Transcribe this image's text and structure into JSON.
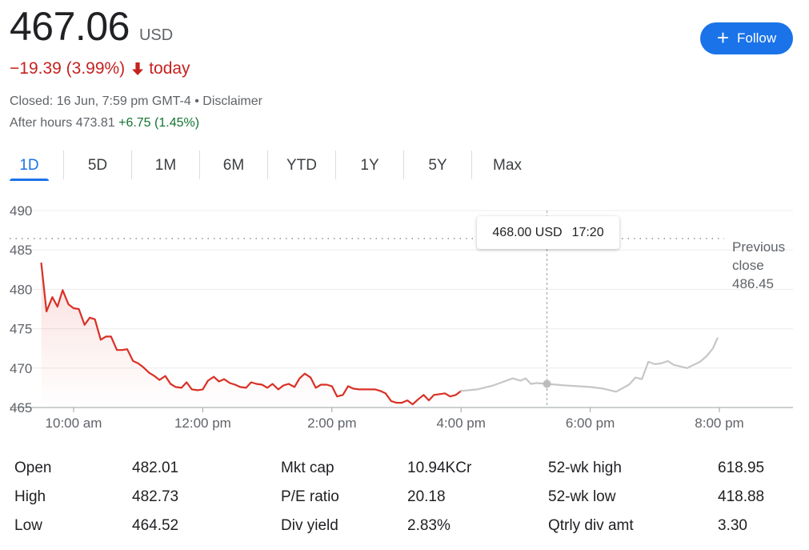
{
  "quote": {
    "price": "467.06",
    "currency": "USD",
    "change": "−19.39 (3.99%)",
    "change_suffix": "today",
    "closed_text": "Closed: 16 Jun, 7:59 pm GMT-4 • Disclaimer",
    "after_hours_label": "After hours 473.81",
    "after_hours_change": "+6.75 (1.45%)",
    "down_color": "#c5221f",
    "up_color": "#137333"
  },
  "follow_button": {
    "label": "Follow",
    "icon": "plus-icon",
    "color": "#1a73e8"
  },
  "tabs": [
    {
      "label": "1D",
      "active": true
    },
    {
      "label": "5D",
      "active": false
    },
    {
      "label": "1M",
      "active": false
    },
    {
      "label": "6M",
      "active": false
    },
    {
      "label": "YTD",
      "active": false
    },
    {
      "label": "1Y",
      "active": false
    },
    {
      "label": "5Y",
      "active": false
    },
    {
      "label": "Max",
      "active": false
    }
  ],
  "tooltip": {
    "value": "468.00 USD",
    "time": "17:20"
  },
  "chart_data": {
    "type": "line",
    "title": "",
    "xlabel": "",
    "ylabel": "",
    "ylim": [
      465,
      490
    ],
    "yticks": [
      490,
      485,
      480,
      475,
      470,
      465
    ],
    "xlim": [
      9.5,
      20.25
    ],
    "xticks": [
      {
        "value": 10,
        "label": "10:00 am"
      },
      {
        "value": 12,
        "label": "12:00 pm"
      },
      {
        "value": 14,
        "label": "2:00 pm"
      },
      {
        "value": 16,
        "label": "4:00 pm"
      },
      {
        "value": 18,
        "label": "6:00 pm"
      },
      {
        "value": 20,
        "label": "8:00 pm"
      }
    ],
    "grid": true,
    "previous_close": {
      "label_lines": [
        "Previous",
        "close",
        "486.45"
      ],
      "value": 486.45
    },
    "hover_point": {
      "x": 17.33,
      "y": 468.0
    },
    "series": [
      {
        "session": "regular",
        "color": "#d93025",
        "x": [
          9.5,
          9.58,
          9.67,
          9.75,
          9.83,
          9.92,
          10.0,
          10.08,
          10.17,
          10.25,
          10.33,
          10.42,
          10.5,
          10.58,
          10.67,
          10.75,
          10.83,
          10.92,
          11.0,
          11.08,
          11.17,
          11.25,
          11.33,
          11.42,
          11.5,
          11.58,
          11.67,
          11.75,
          11.83,
          11.92,
          12.0,
          12.08,
          12.17,
          12.25,
          12.33,
          12.42,
          12.5,
          12.58,
          12.67,
          12.75,
          12.83,
          12.92,
          13.0,
          13.08,
          13.17,
          13.25,
          13.33,
          13.42,
          13.5,
          13.58,
          13.67,
          13.75,
          13.83,
          13.92,
          14.0,
          14.08,
          14.17,
          14.25,
          14.33,
          14.42,
          14.5,
          14.58,
          14.67,
          14.75,
          14.83,
          14.92,
          15.0,
          15.08,
          15.17,
          15.25,
          15.33,
          15.42,
          15.5,
          15.58,
          15.67,
          15.75,
          15.83,
          15.92,
          16.0
        ],
        "y": [
          483.3,
          477.2,
          479.0,
          477.8,
          479.9,
          478.1,
          477.6,
          477.5,
          475.5,
          476.4,
          476.2,
          473.6,
          474.0,
          474.0,
          472.3,
          472.3,
          472.4,
          470.9,
          470.6,
          470.1,
          469.4,
          469.0,
          468.5,
          469.0,
          468.0,
          467.6,
          467.5,
          468.2,
          467.3,
          467.2,
          467.3,
          468.4,
          468.9,
          468.3,
          468.6,
          468.1,
          467.9,
          467.6,
          467.5,
          468.2,
          468.0,
          467.9,
          467.5,
          468.0,
          467.3,
          467.8,
          468.0,
          467.6,
          468.7,
          469.3,
          468.8,
          467.5,
          467.9,
          467.9,
          467.7,
          466.4,
          466.6,
          467.7,
          467.4,
          467.3,
          467.3,
          467.3,
          467.3,
          467.1,
          466.8,
          465.8,
          465.6,
          465.6,
          465.9,
          465.4,
          466.0,
          466.6,
          465.9,
          466.6,
          466.7,
          466.8,
          466.4,
          466.6,
          467.1
        ]
      },
      {
        "session": "after_hours",
        "color": "#c6c6c6",
        "x": [
          16.0,
          16.25,
          16.5,
          16.6,
          16.8,
          16.92,
          17.0,
          17.08,
          17.17,
          17.33,
          17.6,
          17.8,
          18.0,
          18.2,
          18.4,
          18.6,
          18.7,
          18.8,
          18.9,
          19.0,
          19.1,
          19.2,
          19.3,
          19.4,
          19.5,
          19.6,
          19.7,
          19.8,
          19.9,
          19.97
        ],
        "y": [
          467.1,
          467.3,
          467.8,
          468.1,
          468.7,
          468.4,
          468.7,
          468.0,
          468.1,
          468.0,
          467.8,
          467.7,
          467.6,
          467.4,
          467.0,
          467.9,
          468.8,
          468.6,
          470.8,
          470.5,
          470.6,
          470.9,
          470.4,
          470.2,
          470.0,
          470.4,
          470.8,
          471.5,
          472.5,
          473.8
        ]
      }
    ]
  },
  "stats": [
    [
      {
        "label": "Open",
        "value": "482.01"
      },
      {
        "label": "Mkt cap",
        "value": "10.94KCr"
      },
      {
        "label": "52-wk high",
        "value": "618.95"
      }
    ],
    [
      {
        "label": "High",
        "value": "482.73"
      },
      {
        "label": "P/E ratio",
        "value": "20.18"
      },
      {
        "label": "52-wk low",
        "value": "418.88"
      }
    ],
    [
      {
        "label": "Low",
        "value": "464.52"
      },
      {
        "label": "Div yield",
        "value": "2.83%"
      },
      {
        "label": "Qtrly div amt",
        "value": "3.30"
      }
    ]
  ]
}
